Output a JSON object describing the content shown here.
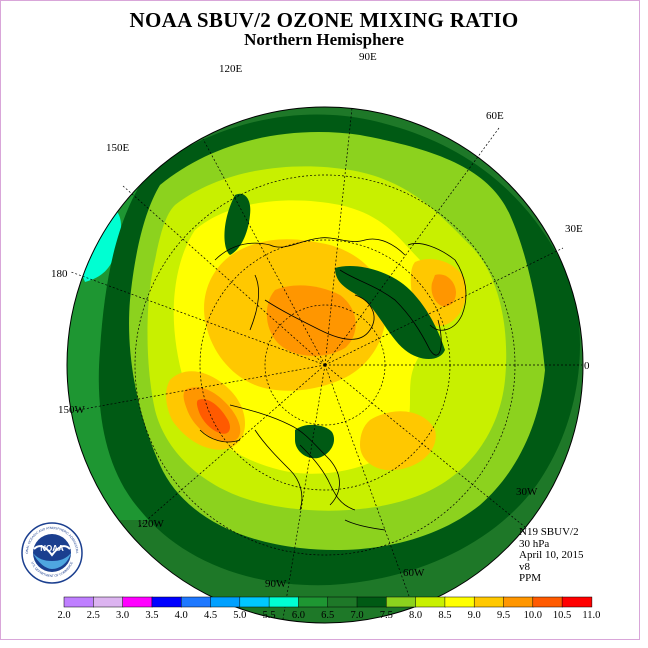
{
  "title": "NOAA SBUV/2 OZONE MIXING RATIO",
  "subtitle": "Northern Hemisphere",
  "longitude_labels": {
    "e90": "90E",
    "e120": "120E",
    "e60": "60E",
    "e150": "150E",
    "e30": "30E",
    "d180": "180",
    "d0": "0",
    "w150": "150W",
    "w30": "30W",
    "w120": "120W",
    "w60": "60W",
    "w90": "90W"
  },
  "info": {
    "instrument": "N19 SBUV/2",
    "level": "30 hPa",
    "date": "April 10, 2015",
    "version": "v8",
    "units": "PPM"
  },
  "logo": {
    "text": "NOAA",
    "ring_text_top": "NATIONAL OCEANIC AND ATMOSPHERIC ADMINISTRATION",
    "ring_text_bottom": "U.S. DEPARTMENT OF COMMERCE"
  },
  "colorbar": {
    "ticks": [
      "2.0",
      "2.5",
      "3.0",
      "3.5",
      "4.0",
      "4.5",
      "5.0",
      "5.5",
      "6.0",
      "6.5",
      "7.0",
      "7.5",
      "8.0",
      "8.5",
      "9.0",
      "9.5",
      "10.0",
      "10.5",
      "11.0"
    ],
    "colors": [
      "#bf7fff",
      "#dcb4f0",
      "#ff00ff",
      "#0000ff",
      "#1e78ff",
      "#00a0ff",
      "#00c8ff",
      "#00ffd2",
      "#1e9632",
      "#1e7828",
      "#005a14",
      "#8cd21e",
      "#c8f000",
      "#ffff00",
      "#ffc800",
      "#ff9600",
      "#ff5a00",
      "#ff0000",
      "#8b4513"
    ]
  },
  "map_colors": {
    "c65": "#1e7828",
    "c70": "#005a14",
    "c60": "#1e9632",
    "c55": "#00ffd2",
    "c75": "#8cd21e",
    "c80": "#c8f000",
    "c85": "#ffff00",
    "c90": "#ffc800",
    "c95": "#ff9600",
    "c100": "#ff5a00"
  }
}
